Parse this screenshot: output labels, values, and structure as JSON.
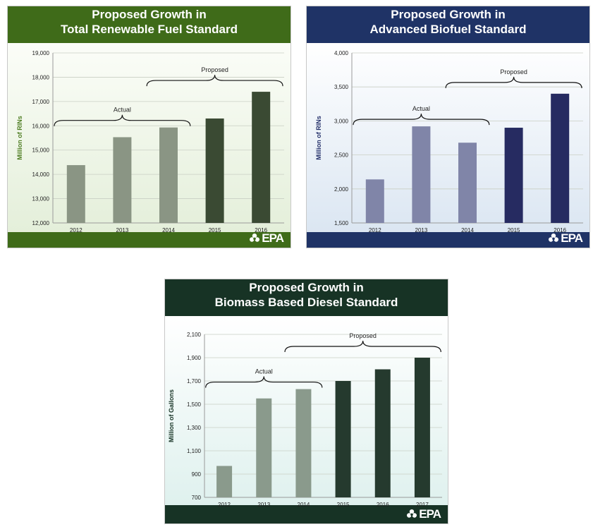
{
  "charts": [
    {
      "id": "p1",
      "title_lines": [
        "Proposed Growth in",
        "Total Renewable Fuel Standard"
      ],
      "colors": {
        "header": "#3f6b19",
        "actual": "#8a9584",
        "proposed": "#3a4a33",
        "ylabel": "#4e7d22"
      },
      "logo": "EPA"
    },
    {
      "id": "p2",
      "title_lines": [
        "Proposed Growth in",
        "Advanced Biofuel Standard"
      ],
      "colors": {
        "header": "#1f3366",
        "actual": "#8085a8",
        "proposed": "#262b61",
        "ylabel": "#24306a"
      },
      "logo": "EPA"
    },
    {
      "id": "p3",
      "title_lines": [
        "Proposed Growth in",
        "Biomass Based Diesel Standard"
      ],
      "colors": {
        "header": "#173325",
        "actual": "#8a9a8c",
        "proposed": "#253a2e",
        "ylabel": "#173325"
      },
      "logo": "EPA"
    }
  ],
  "chart_data": [
    {
      "type": "bar",
      "title": "Proposed Growth in Total Renewable Fuel Standard",
      "xlabel": "",
      "ylabel": "Million of RINs",
      "categories": [
        "2012",
        "2013",
        "2014",
        "2015",
        "2016"
      ],
      "values": [
        14380,
        15530,
        15930,
        16300,
        17400
      ],
      "ylim": [
        12000,
        19000
      ],
      "yticks": [
        12000,
        13000,
        14000,
        15000,
        16000,
        17000,
        18000,
        19000
      ],
      "ytick_labels": [
        "12,000",
        "13,000",
        "14,000",
        "15,000",
        "16,000",
        "17,000",
        "18,000",
        "19,000"
      ],
      "bar_groups": [
        "Actual",
        "Actual",
        "Actual",
        "Proposed",
        "Proposed"
      ],
      "annotations": [
        {
          "label": "Actual",
          "from_category": "2012",
          "to_category": "2014"
        },
        {
          "label": "Proposed",
          "from_category": "2014",
          "to_category": "2016"
        }
      ],
      "grid": true
    },
    {
      "type": "bar",
      "title": "Proposed Growth in Advanced Biofuel Standard",
      "xlabel": "",
      "ylabel": "Million of RINs",
      "categories": [
        "2012",
        "2013",
        "2014",
        "2015",
        "2016"
      ],
      "values": [
        2140,
        2920,
        2680,
        2900,
        3400
      ],
      "ylim": [
        1500,
        4000
      ],
      "yticks": [
        1500,
        2000,
        2500,
        3000,
        3500,
        4000
      ],
      "ytick_labels": [
        "1,500",
        "2,000",
        "2,500",
        "3,000",
        "3,500",
        "4,000"
      ],
      "bar_groups": [
        "Actual",
        "Actual",
        "Actual",
        "Proposed",
        "Proposed"
      ],
      "annotations": [
        {
          "label": "Actual",
          "from_category": "2012",
          "to_category": "2014"
        },
        {
          "label": "Proposed",
          "from_category": "2014",
          "to_category": "2016"
        }
      ],
      "grid": true
    },
    {
      "type": "bar",
      "title": "Proposed Growth in Biomass Based Diesel Standard",
      "xlabel": "",
      "ylabel": "Million of Gallons",
      "categories": [
        "2012",
        "2013",
        "2014",
        "2015",
        "2016",
        "2017"
      ],
      "values": [
        970,
        1550,
        1630,
        1700,
        1800,
        1900
      ],
      "ylim": [
        700,
        2100
      ],
      "yticks": [
        700,
        900,
        1100,
        1300,
        1500,
        1700,
        1900,
        2100
      ],
      "ytick_labels": [
        "700",
        "900",
        "1,100",
        "1,300",
        "1,500",
        "1,700",
        "1,900",
        "2,100"
      ],
      "bar_groups": [
        "Actual",
        "Actual",
        "Actual",
        "Proposed",
        "Proposed",
        "Proposed"
      ],
      "annotations": [
        {
          "label": "Actual",
          "from_category": "2012",
          "to_category": "2014"
        },
        {
          "label": "Proposed",
          "from_category": "2014",
          "to_category": "2017"
        }
      ],
      "grid": true
    }
  ]
}
